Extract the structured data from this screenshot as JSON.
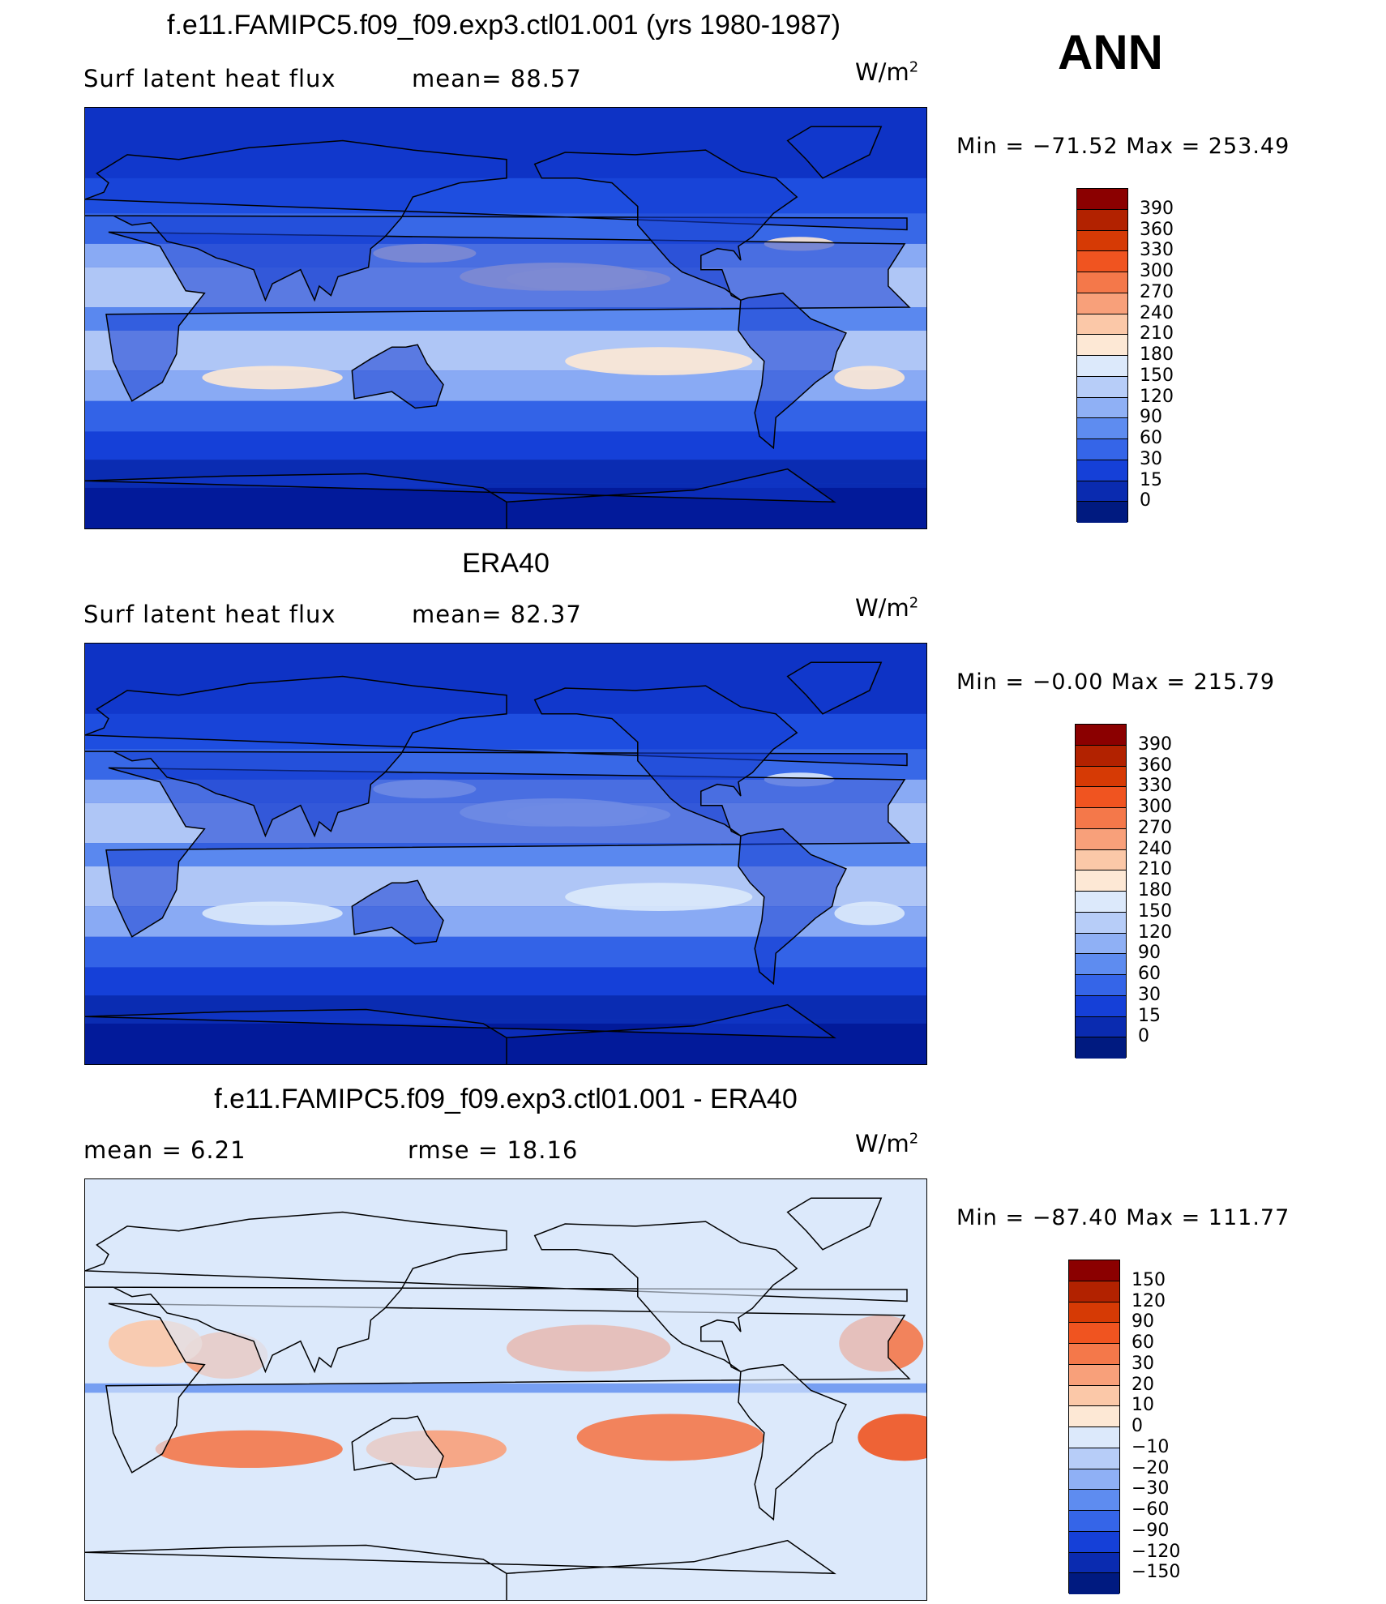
{
  "season": "ANN",
  "panels": [
    {
      "title": "f.e11.FAMIPC5.f09_f09.exp3.ctl01.001 (yrs 1980-1987)",
      "left_label": "Surf  latent  heat  flux",
      "mid_label": "mean=   88.57",
      "units_base": "W/m",
      "units_exp": "2",
      "minmax": "Min  =  −71.52  Max  =  253.49",
      "scheme": "abs"
    },
    {
      "title": "ERA40",
      "left_label": "Surf  latent  heat  flux",
      "mid_label": "mean=   82.37",
      "units_base": "W/m",
      "units_exp": "2",
      "minmax": "Min  =   −0.00  Max  =  215.79",
      "scheme": "abs"
    },
    {
      "title": "f.e11.FAMIPC5.f09_f09.exp3.ctl01.001 - ERA40",
      "left_label": "mean  =      6.21",
      "mid_label": "rmse  =     18.16",
      "units_base": "W/m",
      "units_exp": "2",
      "minmax": "Min  =  −87.40  Max  =  111.77",
      "scheme": "diff"
    }
  ],
  "chart_data": [
    {
      "type": "heatmap",
      "title": "f.e11.FAMIPC5.f09_f09.exp3.ctl01.001 (yrs 1980-1987)",
      "variable": "Surf  latent  heat  flux",
      "units": "W/m2",
      "mean": 88.57,
      "min": -71.52,
      "max": 253.49,
      "colorbar_levels": [
        "390",
        "360",
        "330",
        "300",
        "270",
        "240",
        "210",
        "180",
        "150",
        "120",
        "90",
        "60",
        "30",
        "15",
        "0"
      ],
      "colorbar_colors": [
        "#8b0000",
        "#b22200",
        "#d63a05",
        "#f05420",
        "#f4784a",
        "#f8a07a",
        "#fbc8a8",
        "#fde8d5",
        "#dce9fb",
        "#b7cdf8",
        "#8fb0f5",
        "#5e8cf0",
        "#3565e8",
        "#1540d8",
        "#0a2bb0",
        "#001a80"
      ]
    },
    {
      "type": "heatmap",
      "title": "ERA40",
      "variable": "Surf  latent  heat  flux",
      "units": "W/m2",
      "mean": 82.37,
      "min": -0.0,
      "max": 215.79,
      "colorbar_levels": [
        "390",
        "360",
        "330",
        "300",
        "270",
        "240",
        "210",
        "180",
        "150",
        "120",
        "90",
        "60",
        "30",
        "15",
        "0"
      ],
      "colorbar_colors": [
        "#8b0000",
        "#b22200",
        "#d63a05",
        "#f05420",
        "#f4784a",
        "#f8a07a",
        "#fbc8a8",
        "#fde8d5",
        "#dce9fb",
        "#b7cdf8",
        "#8fb0f5",
        "#5e8cf0",
        "#3565e8",
        "#1540d8",
        "#0a2bb0",
        "#001a80"
      ]
    },
    {
      "type": "heatmap",
      "title": "f.e11.FAMIPC5.f09_f09.exp3.ctl01.001 - ERA40",
      "units": "W/m2",
      "mean": 6.21,
      "rmse": 18.16,
      "min": -87.4,
      "max": 111.77,
      "colorbar_levels": [
        "150",
        "120",
        "90",
        "60",
        "30",
        "20",
        "10",
        "0",
        "−10",
        "−20",
        "−30",
        "−60",
        "−90",
        "−120",
        "−150"
      ],
      "colorbar_colors": [
        "#8b0000",
        "#b22200",
        "#d63a05",
        "#f05420",
        "#f4784a",
        "#f8a07a",
        "#fbc8a8",
        "#fde8d5",
        "#dce9fb",
        "#b7cdf8",
        "#8fb0f5",
        "#5e8cf0",
        "#3565e8",
        "#1540d8",
        "#0a2bb0",
        "#001a80"
      ]
    }
  ]
}
